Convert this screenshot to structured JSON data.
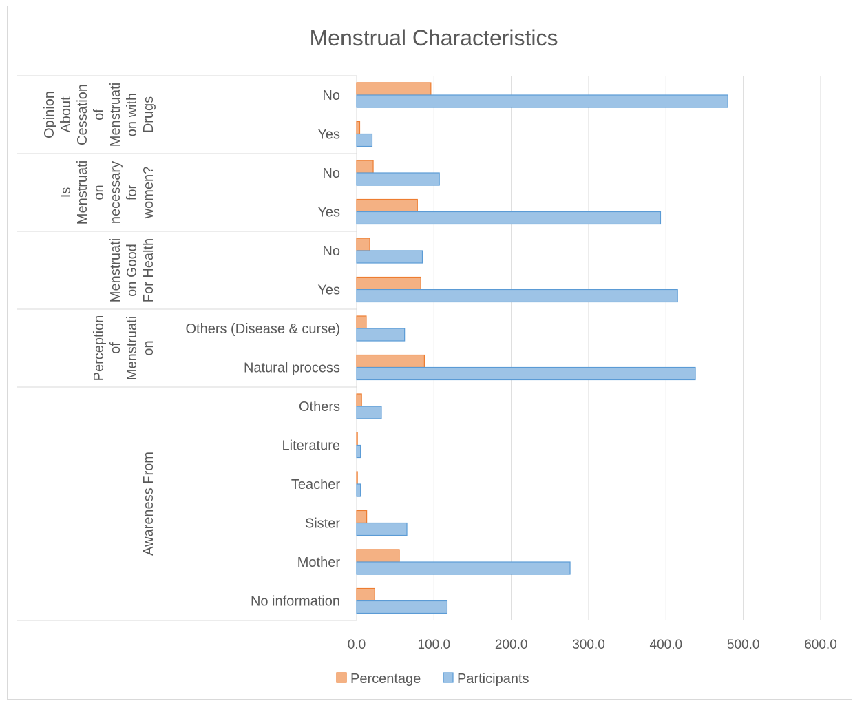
{
  "chart_data": {
    "type": "bar",
    "orientation": "horizontal",
    "title": "Menstrual Characteristics",
    "groups": [
      {
        "label_lines": [
          "Opinion",
          "About",
          "Cessation",
          "of",
          "Menstruati",
          "on with",
          "Drugs"
        ],
        "categories": [
          "No",
          "Yes"
        ]
      },
      {
        "label_lines": [
          "Is",
          "Menstruati",
          "on",
          "necessary",
          "for",
          "women?"
        ],
        "categories": [
          "No",
          "Yes"
        ]
      },
      {
        "label_lines": [
          "Menstruati",
          "on Good",
          "For Health"
        ],
        "categories": [
          "No",
          "Yes"
        ]
      },
      {
        "label_lines": [
          "Perception",
          "of",
          "Menstruati",
          "on"
        ],
        "categories": [
          "Others (Disease & curse)",
          "Natural process"
        ]
      },
      {
        "label_lines": [
          "Awareness From"
        ],
        "categories": [
          "Others",
          "Literature",
          "Teacher",
          "Sister",
          "Mother",
          "No information"
        ]
      }
    ],
    "series": [
      {
        "name": "Percentage",
        "color": "#F4B183",
        "border": "#ED7D31",
        "values": [
          96.0,
          4.0,
          21.4,
          78.6,
          17.0,
          83.0,
          12.4,
          87.6,
          6.4,
          1.0,
          1.0,
          13.0,
          55.2,
          23.4
        ]
      },
      {
        "name": "Participants",
        "color": "#9DC3E6",
        "border": "#5B9BD5",
        "values": [
          480,
          20,
          107,
          393,
          85,
          415,
          62,
          438,
          32,
          5,
          5,
          65,
          276,
          117
        ]
      }
    ],
    "xlim": [
      0,
      600
    ],
    "xticks": [
      "0.0",
      "100.0",
      "200.0",
      "300.0",
      "400.0",
      "500.0",
      "600.0"
    ],
    "grid": true,
    "legend_position": "bottom"
  }
}
